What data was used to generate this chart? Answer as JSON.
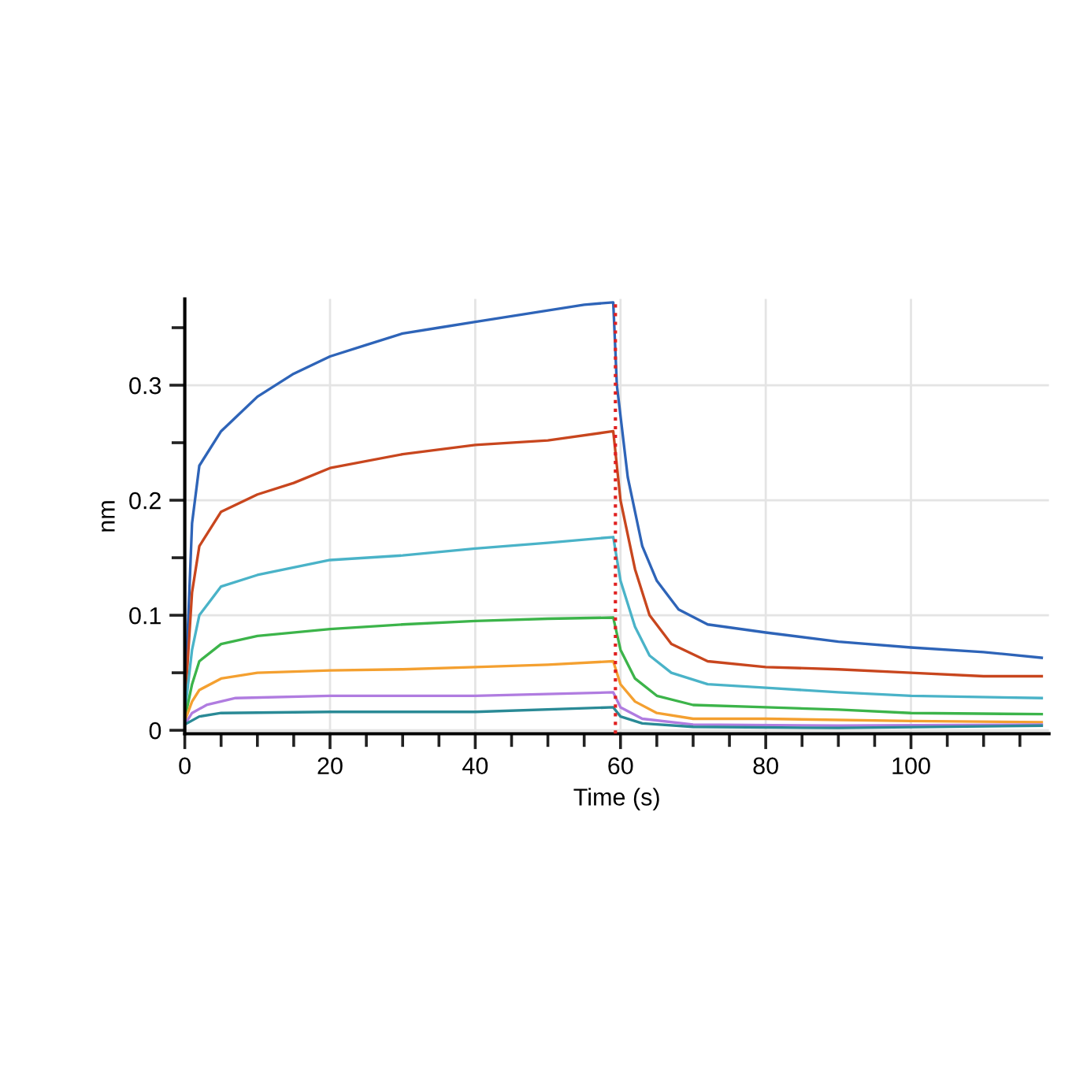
{
  "chart_data": {
    "type": "line",
    "xlabel": "Time (s)",
    "ylabel": "nm",
    "xlim": [
      0,
      119
    ],
    "ylim": [
      -0.003,
      0.375
    ],
    "xticks": [
      0,
      {
        "value": 5,
        "label": null
      },
      {
        "value": 10,
        "label": null
      },
      {
        "value": 15,
        "label": null
      },
      20,
      {
        "value": 25,
        "label": null
      },
      {
        "value": 30,
        "label": null
      },
      {
        "value": 35,
        "label": null
      },
      40,
      {
        "value": 45,
        "label": null
      },
      {
        "value": 50,
        "label": null
      },
      {
        "value": 55,
        "label": null
      },
      60,
      {
        "value": 65,
        "label": null
      },
      {
        "value": 70,
        "label": null
      },
      {
        "value": 75,
        "label": null
      },
      80,
      {
        "value": 85,
        "label": null
      },
      {
        "value": 90,
        "label": null
      },
      {
        "value": 95,
        "label": null
      },
      100,
      {
        "value": 105,
        "label": null
      },
      {
        "value": 110,
        "label": null
      },
      {
        "value": 115,
        "label": null
      }
    ],
    "yticks": [
      0,
      {
        "value": 0.05,
        "label": null
      },
      0.1,
      {
        "value": 0.15,
        "label": null
      },
      0.2,
      {
        "value": 0.25,
        "label": null
      },
      0.3,
      {
        "value": 0.35,
        "label": null
      }
    ],
    "grid": true,
    "legend": false,
    "marker": "none",
    "line_style": "solid",
    "ref_lines": [
      {
        "axis": "x",
        "value": 59.3,
        "label": null,
        "color": "#e02020",
        "line_style": "dotted"
      }
    ],
    "series": [
      {
        "color": "#2e64b8",
        "x": [
          0,
          0.5,
          1,
          2,
          5,
          10,
          15,
          20,
          25,
          30,
          35,
          40,
          45,
          50,
          55,
          59,
          59.5,
          61,
          63,
          65,
          68,
          72,
          80,
          90,
          100,
          110,
          118
        ],
        "values": [
          0.03,
          0.1,
          0.18,
          0.23,
          0.26,
          0.29,
          0.31,
          0.325,
          0.335,
          0.345,
          0.35,
          0.355,
          0.36,
          0.365,
          0.37,
          0.372,
          0.3,
          0.22,
          0.16,
          0.13,
          0.105,
          0.092,
          0.085,
          0.077,
          0.072,
          0.068,
          0.063
        ]
      },
      {
        "color": "#c8461e",
        "x": [
          0,
          1,
          2,
          5,
          10,
          15,
          20,
          30,
          40,
          50,
          59,
          60,
          62,
          64,
          67,
          72,
          80,
          90,
          100,
          110,
          118
        ],
        "values": [
          0.02,
          0.12,
          0.16,
          0.19,
          0.205,
          0.215,
          0.228,
          0.24,
          0.248,
          0.252,
          0.26,
          0.2,
          0.14,
          0.1,
          0.075,
          0.06,
          0.055,
          0.053,
          0.05,
          0.047,
          0.047
        ]
      },
      {
        "color": "#4ab3c8",
        "x": [
          0,
          1,
          2,
          5,
          10,
          20,
          30,
          40,
          50,
          59,
          60,
          62,
          64,
          67,
          72,
          80,
          90,
          100,
          118
        ],
        "values": [
          0.015,
          0.07,
          0.1,
          0.125,
          0.135,
          0.148,
          0.152,
          0.158,
          0.163,
          0.168,
          0.13,
          0.09,
          0.065,
          0.05,
          0.04,
          0.037,
          0.033,
          0.03,
          0.028
        ]
      },
      {
        "color": "#3cb44a",
        "x": [
          0,
          1,
          2,
          5,
          10,
          20,
          30,
          40,
          50,
          59,
          60,
          62,
          65,
          70,
          80,
          90,
          100,
          118
        ],
        "values": [
          0.01,
          0.04,
          0.06,
          0.075,
          0.082,
          0.088,
          0.092,
          0.095,
          0.097,
          0.098,
          0.07,
          0.045,
          0.03,
          0.022,
          0.02,
          0.018,
          0.015,
          0.014
        ]
      },
      {
        "color": "#f4a030",
        "x": [
          0,
          1,
          2,
          5,
          10,
          20,
          30,
          40,
          50,
          59,
          60,
          62,
          65,
          70,
          80,
          100,
          118
        ],
        "values": [
          0.008,
          0.025,
          0.035,
          0.045,
          0.05,
          0.052,
          0.053,
          0.055,
          0.057,
          0.06,
          0.04,
          0.025,
          0.015,
          0.01,
          0.01,
          0.008,
          0.007
        ]
      },
      {
        "color": "#b07ce0",
        "x": [
          0,
          1,
          3,
          7,
          20,
          40,
          59,
          60,
          63,
          70,
          90,
          118
        ],
        "values": [
          0.005,
          0.015,
          0.022,
          0.028,
          0.03,
          0.03,
          0.033,
          0.02,
          0.01,
          0.005,
          0.004,
          0.005
        ]
      },
      {
        "color": "#2a8a96",
        "x": [
          0,
          2,
          5,
          20,
          40,
          59,
          60,
          63,
          70,
          90,
          118
        ],
        "values": [
          0.005,
          0.012,
          0.015,
          0.016,
          0.016,
          0.02,
          0.012,
          0.006,
          0.003,
          0.002,
          0.004
        ]
      }
    ]
  }
}
